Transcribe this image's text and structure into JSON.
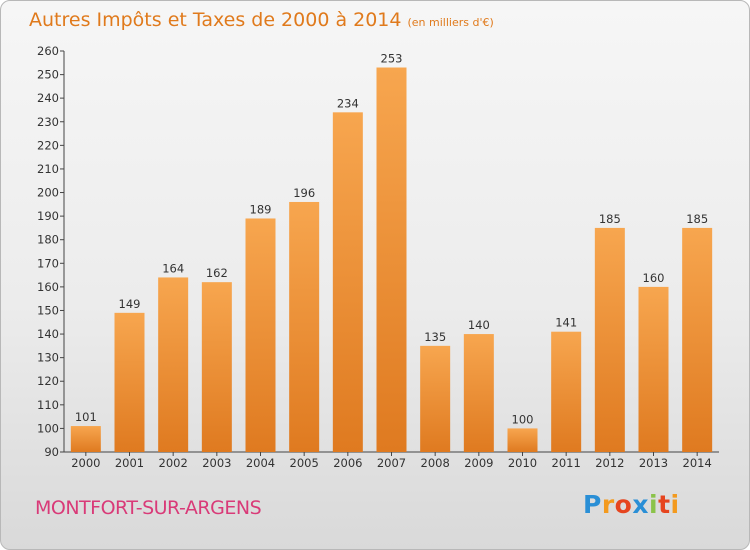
{
  "title": "Autres Impôts et Taxes de 2000 à 2014",
  "subtitle": "(en milliers d'€)",
  "commune": "MONTFORT-SUR-ARGENS",
  "logo": {
    "letters": [
      "P",
      "r",
      "o",
      "x",
      "i",
      "t",
      "i"
    ],
    "colors": [
      "#2a8fd6",
      "#f39a1e",
      "#e6451f",
      "#2a8fd6",
      "#8bc34a",
      "#e6451f",
      "#f39a1e"
    ]
  },
  "colors": {
    "title": "#e07a1c",
    "commune": "#d93a78",
    "bar_light": "#f7a64f",
    "bar_dark": "#df7a20"
  },
  "chart_data": {
    "type": "bar",
    "categories": [
      "2000",
      "2001",
      "2002",
      "2003",
      "2004",
      "2005",
      "2006",
      "2007",
      "2008",
      "2009",
      "2010",
      "2011",
      "2012",
      "2013",
      "2014"
    ],
    "values": [
      101,
      149,
      164,
      162,
      189,
      196,
      234,
      253,
      135,
      140,
      100,
      141,
      185,
      160,
      185
    ],
    "ylim": [
      90,
      260
    ],
    "yticks": [
      90,
      100,
      110,
      120,
      130,
      140,
      150,
      160,
      170,
      180,
      190,
      200,
      210,
      220,
      230,
      240,
      250,
      260
    ],
    "grid": false,
    "data_labels": true
  }
}
